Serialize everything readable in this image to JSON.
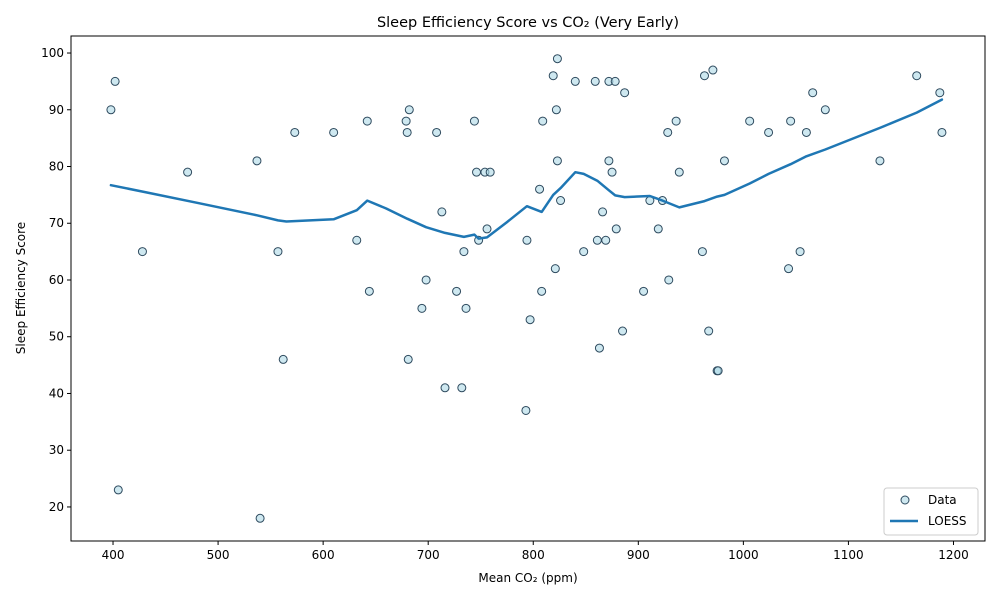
{
  "chart_data": {
    "type": "scatter",
    "title": "Sleep Efficiency Score vs CO₂ (Very Early)",
    "xlabel": "Mean CO₂ (ppm)",
    "ylabel": "Sleep Efficiency Score",
    "xlim": [
      360,
      1230
    ],
    "ylim": [
      14,
      103
    ],
    "xticks": [
      400,
      500,
      600,
      700,
      800,
      900,
      1000,
      1100,
      1200
    ],
    "yticks": [
      20,
      30,
      40,
      50,
      60,
      70,
      80,
      90,
      100
    ],
    "grid": false,
    "legend_position": "bottom-right",
    "colors": {
      "point_fill": "#add8e6",
      "point_edge": "#2e4a5e",
      "line": "#1f77b4"
    },
    "series": [
      {
        "name": "Data",
        "kind": "scatter",
        "points": [
          [
            398,
            90
          ],
          [
            402,
            95
          ],
          [
            405,
            23
          ],
          [
            428,
            65
          ],
          [
            471,
            79
          ],
          [
            537,
            81
          ],
          [
            540,
            18
          ],
          [
            557,
            65
          ],
          [
            562,
            46
          ],
          [
            573,
            86
          ],
          [
            610,
            86
          ],
          [
            632,
            67
          ],
          [
            642,
            88
          ],
          [
            644,
            58
          ],
          [
            679,
            88
          ],
          [
            680,
            86
          ],
          [
            681,
            46
          ],
          [
            682,
            90
          ],
          [
            694,
            55
          ],
          [
            698,
            60
          ],
          [
            708,
            86
          ],
          [
            713,
            72
          ],
          [
            716,
            41
          ],
          [
            727,
            58
          ],
          [
            732,
            41
          ],
          [
            734,
            65
          ],
          [
            736,
            55
          ],
          [
            744,
            88
          ],
          [
            746,
            79
          ],
          [
            748,
            67
          ],
          [
            754,
            79
          ],
          [
            756,
            69
          ],
          [
            759,
            79
          ],
          [
            793,
            37
          ],
          [
            794,
            67
          ],
          [
            797,
            53
          ],
          [
            806,
            76
          ],
          [
            808,
            58
          ],
          [
            809,
            88
          ],
          [
            819,
            96
          ],
          [
            821,
            62
          ],
          [
            822,
            90
          ],
          [
            823,
            81
          ],
          [
            823,
            99
          ],
          [
            826,
            74
          ],
          [
            840,
            95
          ],
          [
            848,
            65
          ],
          [
            859,
            95
          ],
          [
            861,
            67
          ],
          [
            863,
            48
          ],
          [
            866,
            72
          ],
          [
            869,
            67
          ],
          [
            872,
            81
          ],
          [
            872,
            95
          ],
          [
            875,
            79
          ],
          [
            878,
            95
          ],
          [
            879,
            69
          ],
          [
            885,
            51
          ],
          [
            887,
            93
          ],
          [
            905,
            58
          ],
          [
            911,
            74
          ],
          [
            919,
            69
          ],
          [
            923,
            74
          ],
          [
            928,
            86
          ],
          [
            929,
            60
          ],
          [
            936,
            88
          ],
          [
            939,
            79
          ],
          [
            961,
            65
          ],
          [
            963,
            96
          ],
          [
            967,
            51
          ],
          [
            971,
            97
          ],
          [
            975,
            44
          ],
          [
            976,
            44
          ],
          [
            982,
            81
          ],
          [
            1006,
            88
          ],
          [
            1024,
            86
          ],
          [
            1043,
            62
          ],
          [
            1045,
            88
          ],
          [
            1054,
            65
          ],
          [
            1060,
            86
          ],
          [
            1066,
            93
          ],
          [
            1078,
            90
          ],
          [
            1130,
            81
          ],
          [
            1165,
            96
          ],
          [
            1187,
            93
          ],
          [
            1189,
            86
          ]
        ]
      },
      {
        "name": "LOESS",
        "kind": "line",
        "points": [
          [
            398,
            76.7
          ],
          [
            430,
            75.5
          ],
          [
            480,
            73.6
          ],
          [
            537,
            71.4
          ],
          [
            557,
            70.5
          ],
          [
            565,
            70.3
          ],
          [
            610,
            70.7
          ],
          [
            632,
            72.3
          ],
          [
            642,
            74.0
          ],
          [
            660,
            72.6
          ],
          [
            680,
            70.8
          ],
          [
            698,
            69.3
          ],
          [
            716,
            68.3
          ],
          [
            734,
            67.6
          ],
          [
            744,
            68.0
          ],
          [
            748,
            67.3
          ],
          [
            756,
            67.5
          ],
          [
            775,
            70.2
          ],
          [
            794,
            73.0
          ],
          [
            808,
            72.0
          ],
          [
            819,
            75.0
          ],
          [
            826,
            76.2
          ],
          [
            840,
            79.0
          ],
          [
            848,
            78.7
          ],
          [
            861,
            77.5
          ],
          [
            872,
            75.8
          ],
          [
            878,
            74.9
          ],
          [
            887,
            74.6
          ],
          [
            911,
            74.8
          ],
          [
            923,
            74.0
          ],
          [
            939,
            72.8
          ],
          [
            963,
            73.9
          ],
          [
            975,
            74.7
          ],
          [
            982,
            75.0
          ],
          [
            1006,
            77.0
          ],
          [
            1024,
            78.7
          ],
          [
            1045,
            80.4
          ],
          [
            1060,
            81.8
          ],
          [
            1078,
            83.0
          ],
          [
            1130,
            86.8
          ],
          [
            1165,
            89.5
          ],
          [
            1189,
            91.8
          ]
        ]
      }
    ]
  }
}
